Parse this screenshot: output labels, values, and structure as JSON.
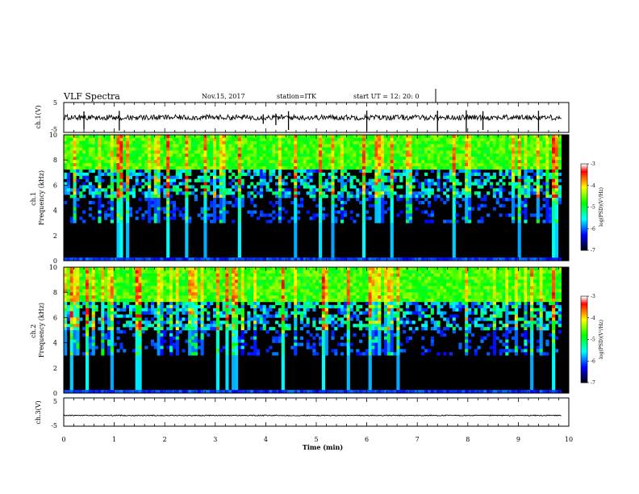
{
  "header": {
    "title": "VLF Spectra",
    "date": "Nov.15, 2017",
    "station": "station=ITK",
    "start_time": "start  UT  =    12: 20: 0"
  },
  "colors": {
    "spectrogram_scale": [
      "#000000",
      "#0000ff",
      "#00ffff",
      "#00ff00",
      "#ffff00",
      "#ff0000",
      "#ffffff"
    ],
    "trace": "#000000"
  },
  "chart_data": [
    {
      "type": "line",
      "panel": "ch1-waveform",
      "ylabel": "ch.1(V)",
      "ylim": [
        -5,
        5
      ],
      "yticks": [
        "5",
        "-5"
      ],
      "baseline_value": 0,
      "spike_times_min": [
        0.4,
        1.1,
        3.95,
        4.2,
        4.45,
        6.0,
        7.4,
        7.97,
        8.3,
        9.4
      ]
    },
    {
      "type": "heatmap",
      "panel": "ch1-spectrogram",
      "ylabel": "ch.1\nFrequency  (kHz)",
      "ylim": [
        0,
        10
      ],
      "yticks": [
        "0",
        "2",
        "4",
        "6",
        "8",
        "10"
      ],
      "colorbar": {
        "label": "log(PSD)(V²/Hz)",
        "range": [
          -7,
          -3
        ],
        "ticks": [
          "-3",
          "-4",
          "-5",
          "-6",
          "-7"
        ]
      }
    },
    {
      "type": "heatmap",
      "panel": "ch2-spectrogram",
      "ylabel": "ch.2\nFrequency  (kHz)",
      "ylim": [
        0,
        10
      ],
      "yticks": [
        "0",
        "2",
        "4",
        "6",
        "8",
        "10"
      ],
      "colorbar": {
        "label": "log(PSD)(V²/Hz)",
        "range": [
          -7,
          -3
        ],
        "ticks": [
          "-3",
          "-4",
          "-5",
          "-6",
          "-7"
        ]
      }
    },
    {
      "type": "line",
      "panel": "ch3-waveform",
      "ylabel": "ch.3(V)",
      "ylim": [
        -5,
        5
      ],
      "yticks": [
        "5",
        "-5"
      ],
      "baseline_value": -1.2
    }
  ],
  "xaxis": {
    "label": "Time  (min)",
    "range": [
      0,
      10
    ],
    "ticks": [
      "0",
      "1",
      "2",
      "3",
      "4",
      "5",
      "6",
      "7",
      "8",
      "9",
      "10"
    ]
  }
}
